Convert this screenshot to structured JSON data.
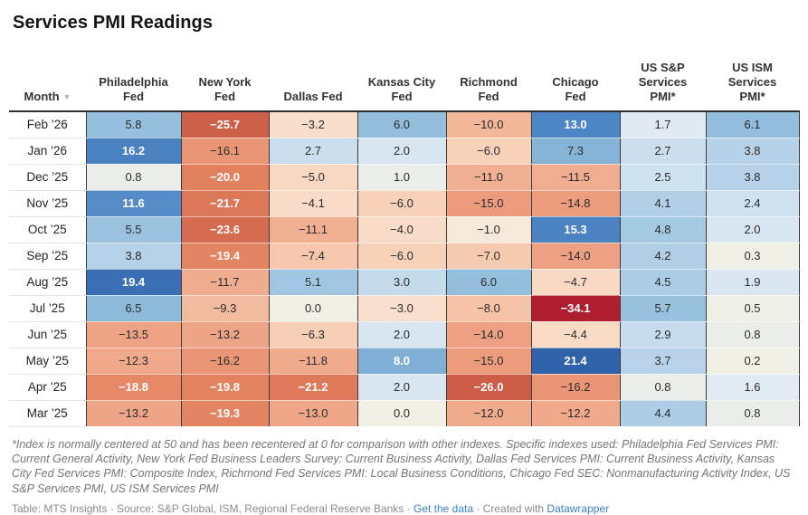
{
  "title": "Services PMI Readings",
  "format": {
    "minus": "−",
    "decimals": 1
  },
  "icons": {
    "sort_desc": "▼"
  },
  "chart_data": {
    "type": "heatmap",
    "title": "Services PMI Readings",
    "month_header": {
      "id": "month",
      "label": "Month",
      "sorted": "desc"
    },
    "columns": [
      {
        "id": "philadelphia-fed",
        "label": "Philadelphia\nFed"
      },
      {
        "id": "new-york-fed",
        "label": "New York\nFed"
      },
      {
        "id": "dallas-fed",
        "label": "Dallas Fed"
      },
      {
        "id": "kansas-city-fed",
        "label": "Kansas City\nFed"
      },
      {
        "id": "richmond-fed",
        "label": "Richmond\nFed"
      },
      {
        "id": "chicago-fed",
        "label": "Chicago\nFed"
      },
      {
        "id": "us-sp-services-pmi",
        "label": "US S&P\nServices\nPMI*"
      },
      {
        "id": "us-ism-services-pmi",
        "label": "US ISM\nServices\nPMI*"
      }
    ],
    "rows": [
      {
        "month": "Feb ’26",
        "values": [
          5.8,
          -25.7,
          -3.2,
          6.0,
          -10.0,
          13.0,
          1.7,
          6.1
        ]
      },
      {
        "month": "Jan ’26",
        "values": [
          16.2,
          -16.1,
          2.7,
          2.0,
          -6.0,
          7.3,
          2.7,
          3.8
        ]
      },
      {
        "month": "Dec ’25",
        "values": [
          0.8,
          -20.0,
          -5.0,
          1.0,
          -11.0,
          -11.5,
          2.5,
          3.8
        ]
      },
      {
        "month": "Nov ’25",
        "values": [
          11.6,
          -21.7,
          -4.1,
          -6.0,
          -15.0,
          -14.8,
          4.1,
          2.4
        ]
      },
      {
        "month": "Oct ’25",
        "values": [
          5.5,
          -23.6,
          -11.1,
          -4.0,
          -1.0,
          15.3,
          4.8,
          2.0
        ]
      },
      {
        "month": "Sep ’25",
        "values": [
          3.8,
          -19.4,
          -7.4,
          -6.0,
          -7.0,
          -14.0,
          4.2,
          0.3
        ]
      },
      {
        "month": "Aug ’25",
        "values": [
          19.4,
          -11.7,
          5.1,
          3.0,
          6.0,
          -4.7,
          4.5,
          1.9
        ]
      },
      {
        "month": "Jul ’25",
        "values": [
          6.5,
          -9.3,
          0.0,
          -3.0,
          -8.0,
          -34.1,
          5.7,
          0.5
        ]
      },
      {
        "month": "Jun ’25",
        "values": [
          -13.5,
          -13.2,
          -6.3,
          2.0,
          -14.0,
          -4.4,
          2.9,
          0.8
        ]
      },
      {
        "month": "May ’25",
        "values": [
          -12.3,
          -16.2,
          -11.8,
          8.0,
          -15.0,
          21.4,
          3.7,
          0.2
        ]
      },
      {
        "month": "Apr ’25",
        "values": [
          -18.8,
          -19.8,
          -21.2,
          2.0,
          -26.0,
          -16.2,
          0.8,
          1.6
        ]
      },
      {
        "month": "Mar ’25",
        "values": [
          -13.2,
          -19.3,
          -13.0,
          0.0,
          -12.0,
          -12.2,
          4.4,
          0.8
        ]
      }
    ],
    "color_scale": {
      "center": 0,
      "domain": [
        -34.1,
        21.4
      ],
      "white_text_pos_min": 8,
      "white_text_neg_max": -18.5,
      "stops": [
        [
          -34.1,
          "#ae1e2f"
        ],
        [
          -26,
          "#cd5d48"
        ],
        [
          -24,
          "#d36950"
        ],
        [
          -20,
          "#e2815e"
        ],
        [
          -16,
          "#ea9777"
        ],
        [
          -12,
          "#f0aa8c"
        ],
        [
          -8,
          "#f5c3a6"
        ],
        [
          -5,
          "#f9d8c2"
        ],
        [
          -3,
          "#f9dfcd"
        ],
        [
          -1,
          "#f6e9db"
        ],
        [
          0,
          "#f2f0e4"
        ],
        [
          0.5,
          "#eeefe7"
        ],
        [
          1,
          "#e9eee9"
        ],
        [
          1.7,
          "#dfeaf3"
        ],
        [
          2,
          "#d8e6f2"
        ],
        [
          3,
          "#c4dbec"
        ],
        [
          4,
          "#b3d0e7"
        ],
        [
          5,
          "#a3c7e1"
        ],
        [
          6,
          "#93bedc"
        ],
        [
          8,
          "#7fafd5"
        ],
        [
          11.6,
          "#558cc7"
        ],
        [
          13,
          "#4d86c4"
        ],
        [
          16.2,
          "#4a81c0"
        ],
        [
          19.4,
          "#3a6fb5"
        ],
        [
          21.4,
          "#2f62ab"
        ]
      ]
    },
    "legend_position": "none",
    "grid": "cell-borders"
  },
  "footnote": "*Index is normally centered at 50 and has been recentered at 0 for comparison with other indexes. Specific indexes used: Philadelphia Fed Services PMI: Current General Activity, New York Fed Business Leaders Survey: Current Business Activity, Dallas Fed Services PMI: Current Business Activity, Kansas City Fed Services PMI: Composite Index, Richmond Fed Services PMI: Local Business Conditions, Chicago Fed SEC: Nonmanufacturing Activity Index, US S&P Services PMI, US ISM Services PMI",
  "footer": {
    "credit": "Table: MTS Insights · Source: S&P Global, ISM, Regional Federal Reserve Banks · ",
    "get_data_link": "Get the data",
    "mid": " · Created with ",
    "datawrapper_link": "Datawrapper"
  },
  "colors": {
    "accent_link": "#3a82c4",
    "header_border": "#2f2f2f",
    "extreme_negative": "#ae1e2f",
    "extreme_positive": "#2f62ab",
    "neutral_cell": "#f2f0e4"
  }
}
